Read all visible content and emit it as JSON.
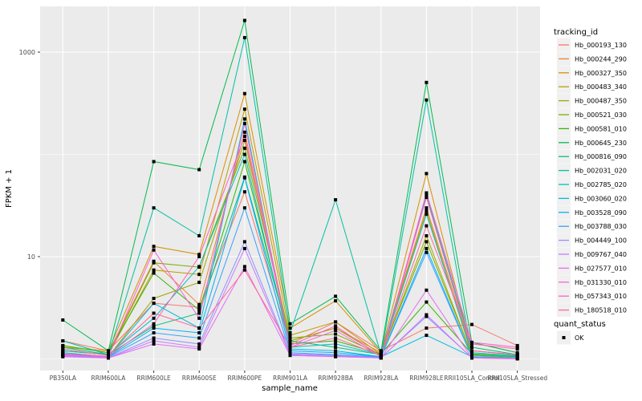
{
  "ui": {
    "page_bg": "#FFFFFF",
    "panel_bg": "#EBEBEB",
    "grid_color": "#FFFFFF",
    "tick_label_color": "#4D4D4D",
    "title_color": "#000000",
    "point_color": "#000000",
    "legend_key_bg": "#F0F0F0"
  },
  "chart_data": {
    "type": "line",
    "title": "",
    "xlabel": "sample_name",
    "ylabel": "FPKM + 1",
    "y_scale": "log10",
    "y_major_ticks": [
      {
        "label": "10",
        "value": 10
      },
      {
        "label": "1000",
        "value": 1000
      }
    ],
    "y_minor_ticks": [
      1,
      100,
      3162
    ],
    "grid": true,
    "legend_position": "right",
    "legend_title": "tracking_id",
    "quant_legend": {
      "title": "quant_status",
      "items": [
        "OK"
      ]
    },
    "x_categories": [
      "PB350LA",
      "RRIM600LA",
      "RRIM600LE",
      "RRIM600SE",
      "RRIM600PE",
      "RRIM901LA",
      "RRIM928BA",
      "RRIM928LA",
      "RRIM928LE",
      "RRII105LA_Control",
      "RRII105LA_Stressed"
    ],
    "series": [
      {
        "name": "Hb_000193_130",
        "color": "#F8766D",
        "values": [
          1.5,
          1.2,
          3.5,
          3.2,
          43,
          1.4,
          2.3,
          1.2,
          2.0,
          2.17,
          1.35
        ]
      },
      {
        "name": "Hb_000244_290",
        "color": "#EA8331",
        "values": [
          1.35,
          1.15,
          9.0,
          3.4,
          165,
          1.5,
          2.0,
          1.15,
          30,
          1.2,
          1.1
        ]
      },
      {
        "name": "Hb_000327_350",
        "color": "#D89000",
        "values": [
          1.3,
          1.2,
          12.6,
          10.5,
          393,
          2.0,
          3.7,
          1.15,
          65,
          1.2,
          1.1
        ]
      },
      {
        "name": "Hb_000483_340",
        "color": "#C09B00",
        "values": [
          1.2,
          1.1,
          7.4,
          6.7,
          277,
          1.7,
          2.3,
          1.1,
          28,
          1.1,
          1.05
        ]
      },
      {
        "name": "Hb_000487_350",
        "color": "#A3A500",
        "values": [
          1.15,
          1.05,
          3.9,
          5.6,
          137,
          1.5,
          2.0,
          1.08,
          16,
          1.08,
          1.03
        ]
      },
      {
        "name": "Hb_000521_030",
        "color": "#7CAE00",
        "values": [
          1.2,
          1.1,
          8.7,
          7.9,
          115,
          1.6,
          1.75,
          1.1,
          14,
          1.1,
          1.05
        ]
      },
      {
        "name": "Hb_000581_010",
        "color": "#39B600",
        "values": [
          1.35,
          1.15,
          6.9,
          3.0,
          85,
          1.4,
          1.5,
          1.12,
          3.6,
          1.12,
          1.06
        ]
      },
      {
        "name": "Hb_000645_230",
        "color": "#00BB4E",
        "values": [
          2.4,
          1.2,
          85,
          71,
          2040,
          2.2,
          4.1,
          1.2,
          505,
          1.45,
          1.15
        ]
      },
      {
        "name": "Hb_000816_090",
        "color": "#00BF7D",
        "values": [
          1.3,
          1.1,
          2.1,
          2.8,
          60,
          1.5,
          1.3,
          1.1,
          40,
          1.3,
          1.1
        ]
      },
      {
        "name": "Hb_002031_020",
        "color": "#00C1A3",
        "values": [
          1.5,
          1.1,
          30,
          16,
          1386,
          1.8,
          36,
          1.1,
          340,
          1.1,
          1.05
        ]
      },
      {
        "name": "Hb_002785_020",
        "color": "#00BFC4",
        "values": [
          1.2,
          1.1,
          2.5,
          8.0,
          100,
          1.3,
          1.4,
          1.1,
          26,
          1.15,
          1.08
        ]
      },
      {
        "name": "Hb_003060_020",
        "color": "#00BAE0",
        "values": [
          1.15,
          1.05,
          3.5,
          2.0,
          222,
          1.25,
          1.2,
          1.05,
          1.7,
          1.05,
          1.02
        ]
      },
      {
        "name": "Hb_003528_090",
        "color": "#00B0F6",
        "values": [
          1.1,
          1.05,
          2.0,
          1.8,
          59,
          1.2,
          1.15,
          1.05,
          12,
          1.05,
          1.02
        ]
      },
      {
        "name": "Hb_003788_030",
        "color": "#35A2FF",
        "values": [
          1.1,
          1.04,
          1.8,
          1.6,
          30,
          1.15,
          1.1,
          1.04,
          11,
          1.04,
          1.02
        ]
      },
      {
        "name": "Hb_004449_100",
        "color": "#9590FF",
        "values": [
          1.08,
          1.03,
          1.6,
          1.4,
          14,
          1.12,
          1.08,
          1.03,
          2.6,
          1.03,
          1.01
        ]
      },
      {
        "name": "Hb_009767_040",
        "color": "#C77CFF",
        "values": [
          1.06,
          1.02,
          1.5,
          1.3,
          12,
          1.1,
          1.06,
          1.02,
          2.7,
          1.02,
          1.01
        ]
      },
      {
        "name": "Hb_027577_010",
        "color": "#E76BF3",
        "values": [
          1.05,
          1.02,
          1.4,
          1.25,
          8.0,
          1.08,
          1.05,
          1.02,
          4.7,
          1.02,
          1.0
        ]
      },
      {
        "name": "Hb_031330_010",
        "color": "#FA62DB",
        "values": [
          1.1,
          1.05,
          11.6,
          2.5,
          200,
          1.3,
          1.9,
          1.05,
          42,
          1.45,
          1.3
        ]
      },
      {
        "name": "Hb_057343_010",
        "color": "#FF62BC",
        "values": [
          1.12,
          1.06,
          2.2,
          10.0,
          150,
          1.35,
          2.1,
          1.06,
          38,
          1.2,
          1.1
        ]
      },
      {
        "name": "Hb_180518_010",
        "color": "#FF6A98",
        "values": [
          1.25,
          1.08,
          2.8,
          2.0,
          7.4,
          1.3,
          1.6,
          1.08,
          20,
          1.4,
          1.25
        ]
      }
    ]
  }
}
